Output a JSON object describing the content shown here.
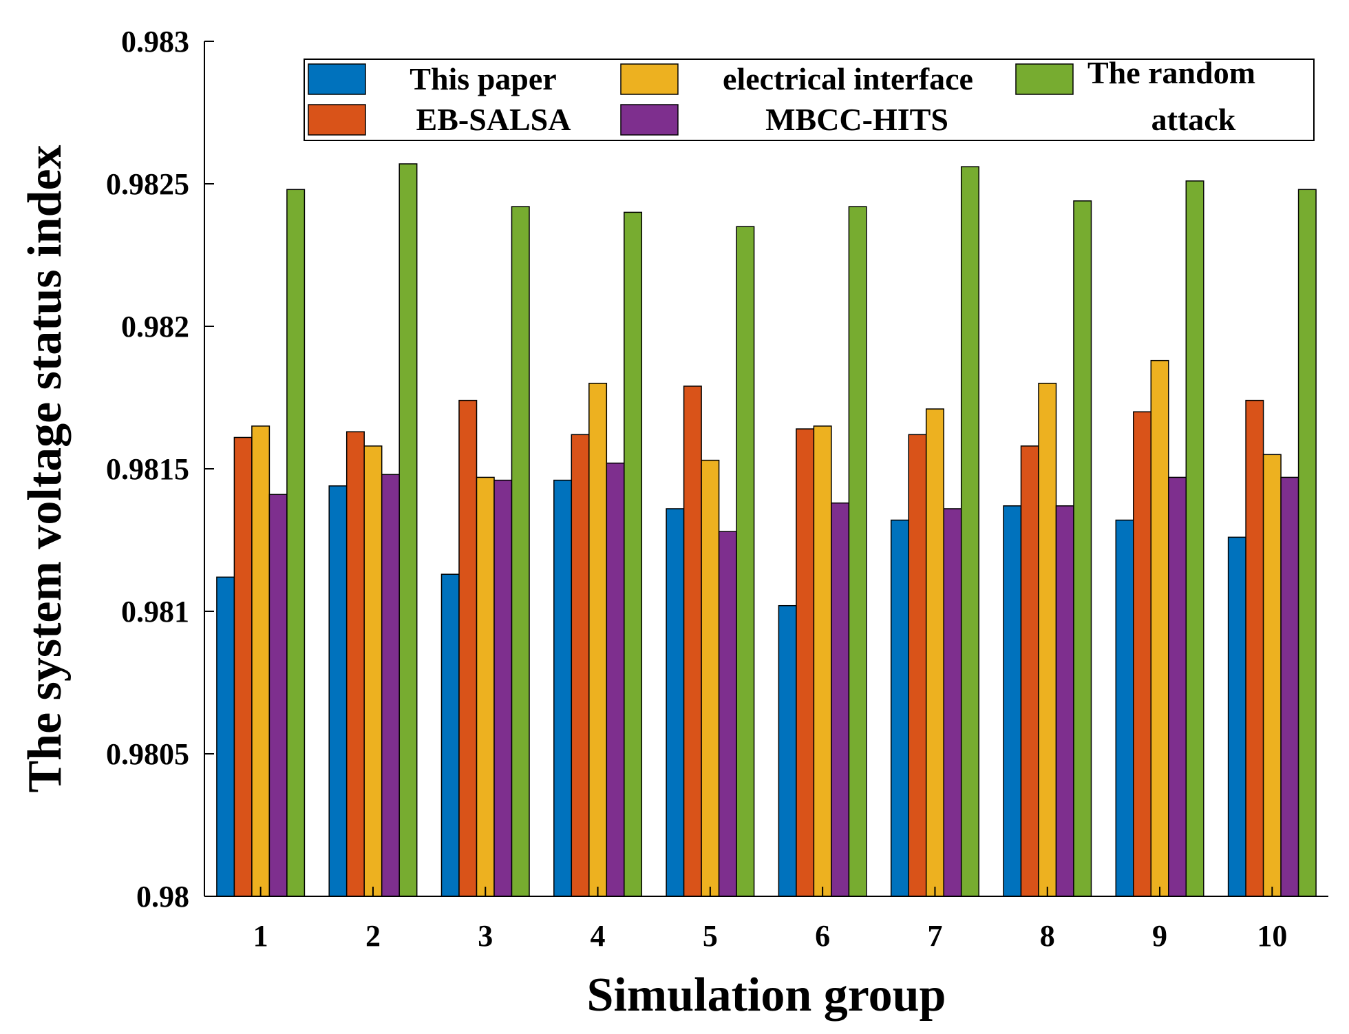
{
  "chart_data": {
    "type": "bar",
    "title": "",
    "xlabel": "Simulation group",
    "ylabel": "The system voltage status index",
    "categories": [
      "1",
      "2",
      "3",
      "4",
      "5",
      "6",
      "7",
      "8",
      "9",
      "10"
    ],
    "ylim": [
      0.98,
      0.983
    ],
    "yticks": [
      0.98,
      0.9805,
      0.981,
      0.9815,
      0.982,
      0.9825,
      0.983
    ],
    "ytick_labels": [
      "0.98",
      "0.9805",
      "0.981",
      "0.9815",
      "0.982",
      "0.9825",
      "0.983"
    ],
    "grid": false,
    "legend_position": "top",
    "series": [
      {
        "name": "This paper",
        "color": "#0072BD",
        "values": [
          0.98112,
          0.98144,
          0.98113,
          0.98146,
          0.98136,
          0.98102,
          0.98132,
          0.98137,
          0.98132,
          0.98126
        ]
      },
      {
        "name": "EB-SALSA",
        "color": "#D95319",
        "values": [
          0.98161,
          0.98163,
          0.98174,
          0.98162,
          0.98179,
          0.98164,
          0.98162,
          0.98158,
          0.9817,
          0.98174
        ]
      },
      {
        "name": "electrical interface",
        "color": "#EDB120",
        "values": [
          0.98165,
          0.98158,
          0.98147,
          0.9818,
          0.98153,
          0.98165,
          0.98171,
          0.9818,
          0.98188,
          0.98155
        ]
      },
      {
        "name": "MBCC-HITS",
        "color": "#7E2F8E",
        "values": [
          0.98141,
          0.98148,
          0.98146,
          0.98152,
          0.98128,
          0.98138,
          0.98136,
          0.98137,
          0.98147,
          0.98147
        ]
      },
      {
        "name": "The random attack",
        "color": "#77AC30",
        "values": [
          0.98248,
          0.98257,
          0.98242,
          0.9824,
          0.98235,
          0.98242,
          0.98256,
          0.98244,
          0.98251,
          0.98248
        ]
      }
    ],
    "legend": [
      {
        "label": "This paper",
        "color": "#0072BD"
      },
      {
        "label": "EB-SALSA",
        "color": "#D95319"
      },
      {
        "label": "electrical interface",
        "color": "#EDB120"
      },
      {
        "label": "MBCC-HITS",
        "color": "#7E2F8E"
      },
      {
        "label": "The random attack",
        "label_line1": "The random",
        "label_line2": "attack",
        "color": "#77AC30"
      }
    ]
  }
}
